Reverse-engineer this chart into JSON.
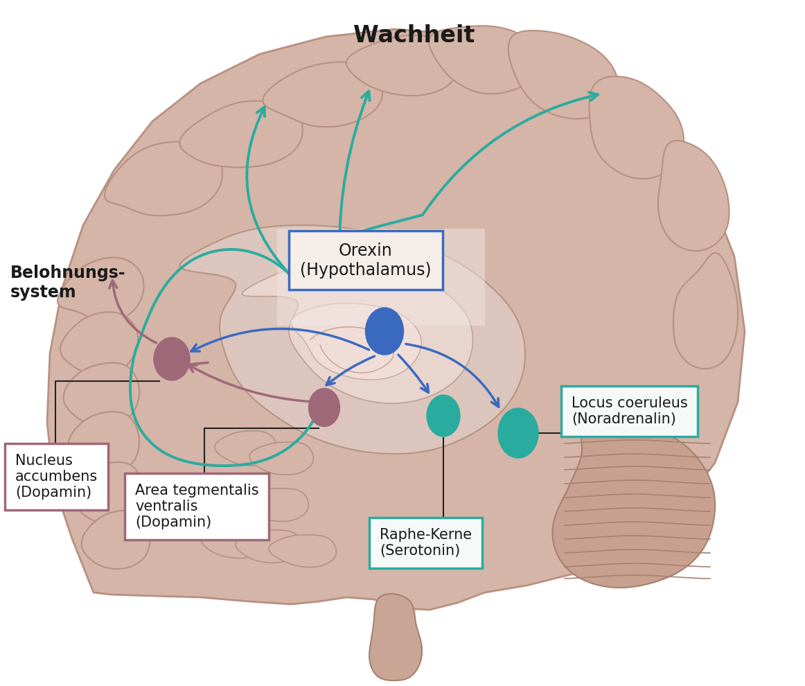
{
  "background_color": "#ffffff",
  "brain_outer_color": "#d4b5a8",
  "brain_gyri_color": "#c9a898",
  "brain_sulci_color": "#b89080",
  "brain_inner_color": "#e2cfc8",
  "brain_deep_color": "#c4a090",
  "cerebellum_color": "#c0a090",
  "teal": "#2aab9f",
  "blue": "#3a6abf",
  "mauve": "#9e6878",
  "dark_mauve": "#7a4f5e",
  "black": "#2a2a2a",
  "labels": {
    "wachheit": "Wachheit",
    "belohnungs": "Belohnungs-\nsystem",
    "orexin": "Orexin\n(Hypothalamus)",
    "nucleus": "Nucleus\naccumbens\n(Dopamin)",
    "area": "Area tegmentalis\nventralis\n(Dopamin)",
    "locus": "Locus coeruleus\n(Noradrenalin)",
    "raphe": "Raphe-Kerne\n(Serotonin)"
  },
  "box_orexin_edge": "#3a6abf",
  "box_nucleus_edge": "#9e6878",
  "box_area_edge": "#9e6878",
  "box_locus_edge": "#2aab9f",
  "box_raphe_edge": "#2aab9f",
  "orexin_box_bg": "#f5ede8",
  "locus_box_bg": "#f5faf9",
  "raphe_box_bg": "#f5faf9"
}
